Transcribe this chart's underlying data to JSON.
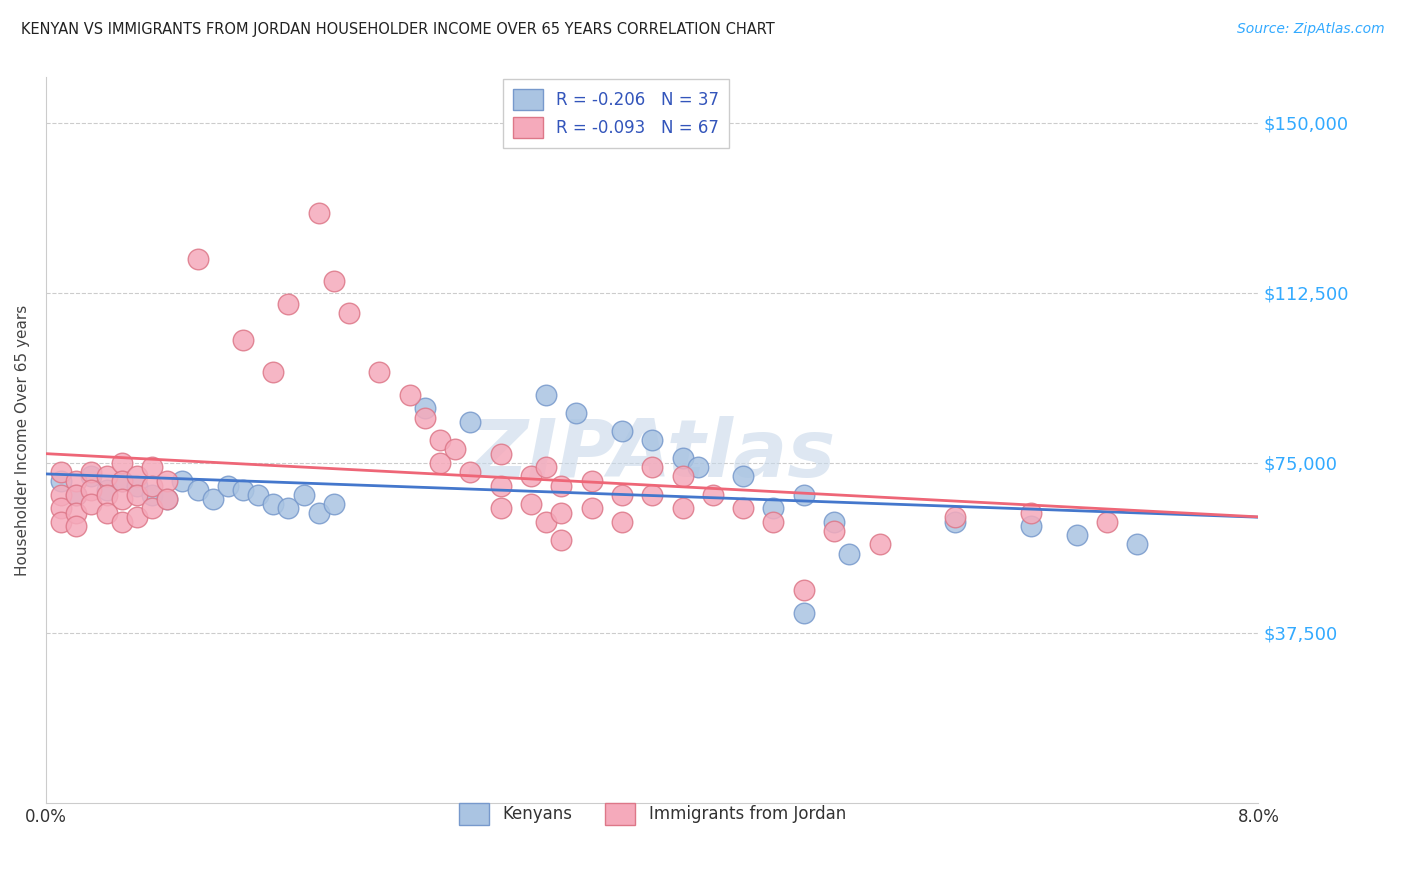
{
  "title": "KENYAN VS IMMIGRANTS FROM JORDAN HOUSEHOLDER INCOME OVER 65 YEARS CORRELATION CHART",
  "source": "Source: ZipAtlas.com",
  "ylabel": "Householder Income Over 65 years",
  "xmin": 0.0,
  "xmax": 0.08,
  "ymin": 0,
  "ymax": 160000,
  "yticks": [
    0,
    37500,
    75000,
    112500,
    150000
  ],
  "ytick_labels": [
    "",
    "$37,500",
    "$75,000",
    "$112,500",
    "$150,000"
  ],
  "xtick_left": "0.0%",
  "xtick_right": "8.0%",
  "grid_color": "#cccccc",
  "background_color": "#ffffff",
  "watermark": "ZIPAtlas",
  "watermark_color": "#c8d8ea",
  "legend_color": "#3355bb",
  "series": [
    {
      "label": "Kenyans",
      "R": -0.206,
      "N": 37,
      "color_fill": "#aac4e2",
      "color_edge": "#7799cc",
      "line_color": "#4477cc",
      "points": [
        [
          0.001,
          71000
        ],
        [
          0.002,
          68000
        ],
        [
          0.003,
          72000
        ],
        [
          0.004,
          69000
        ],
        [
          0.005,
          71000
        ],
        [
          0.006,
          70000
        ],
        [
          0.007,
          68000
        ],
        [
          0.008,
          67000
        ],
        [
          0.009,
          71000
        ],
        [
          0.01,
          69000
        ],
        [
          0.011,
          67000
        ],
        [
          0.012,
          70000
        ],
        [
          0.013,
          69000
        ],
        [
          0.014,
          68000
        ],
        [
          0.015,
          66000
        ],
        [
          0.016,
          65000
        ],
        [
          0.017,
          68000
        ],
        [
          0.018,
          64000
        ],
        [
          0.019,
          66000
        ],
        [
          0.025,
          87000
        ],
        [
          0.028,
          84000
        ],
        [
          0.033,
          90000
        ],
        [
          0.035,
          86000
        ],
        [
          0.038,
          82000
        ],
        [
          0.04,
          80000
        ],
        [
          0.042,
          76000
        ],
        [
          0.043,
          74000
        ],
        [
          0.046,
          72000
        ],
        [
          0.048,
          65000
        ],
        [
          0.05,
          68000
        ],
        [
          0.052,
          62000
        ],
        [
          0.05,
          42000
        ],
        [
          0.053,
          55000
        ],
        [
          0.06,
          62000
        ],
        [
          0.065,
          61000
        ],
        [
          0.068,
          59000
        ],
        [
          0.072,
          57000
        ]
      ]
    },
    {
      "label": "Immigrants from Jordan",
      "R": -0.093,
      "N": 67,
      "color_fill": "#f5aabb",
      "color_edge": "#dd7788",
      "line_color": "#ee6677",
      "points": [
        [
          0.001,
          73000
        ],
        [
          0.001,
          68000
        ],
        [
          0.001,
          65000
        ],
        [
          0.001,
          62000
        ],
        [
          0.002,
          71000
        ],
        [
          0.002,
          68000
        ],
        [
          0.002,
          64000
        ],
        [
          0.002,
          61000
        ],
        [
          0.003,
          73000
        ],
        [
          0.003,
          69000
        ],
        [
          0.003,
          66000
        ],
        [
          0.004,
          72000
        ],
        [
          0.004,
          68000
        ],
        [
          0.004,
          64000
        ],
        [
          0.005,
          75000
        ],
        [
          0.005,
          71000
        ],
        [
          0.005,
          67000
        ],
        [
          0.005,
          62000
        ],
        [
          0.006,
          72000
        ],
        [
          0.006,
          68000
        ],
        [
          0.006,
          63000
        ],
        [
          0.007,
          74000
        ],
        [
          0.007,
          70000
        ],
        [
          0.007,
          65000
        ],
        [
          0.008,
          71000
        ],
        [
          0.008,
          67000
        ],
        [
          0.01,
          120000
        ],
        [
          0.013,
          102000
        ],
        [
          0.015,
          95000
        ],
        [
          0.016,
          110000
        ],
        [
          0.018,
          130000
        ],
        [
          0.019,
          115000
        ],
        [
          0.02,
          108000
        ],
        [
          0.022,
          95000
        ],
        [
          0.024,
          90000
        ],
        [
          0.025,
          85000
        ],
        [
          0.026,
          80000
        ],
        [
          0.026,
          75000
        ],
        [
          0.027,
          78000
        ],
        [
          0.028,
          73000
        ],
        [
          0.03,
          77000
        ],
        [
          0.03,
          70000
        ],
        [
          0.03,
          65000
        ],
        [
          0.032,
          72000
        ],
        [
          0.032,
          66000
        ],
        [
          0.033,
          74000
        ],
        [
          0.033,
          62000
        ],
        [
          0.034,
          70000
        ],
        [
          0.034,
          64000
        ],
        [
          0.034,
          58000
        ],
        [
          0.036,
          71000
        ],
        [
          0.036,
          65000
        ],
        [
          0.038,
          68000
        ],
        [
          0.038,
          62000
        ],
        [
          0.04,
          74000
        ],
        [
          0.04,
          68000
        ],
        [
          0.042,
          72000
        ],
        [
          0.042,
          65000
        ],
        [
          0.044,
          68000
        ],
        [
          0.046,
          65000
        ],
        [
          0.048,
          62000
        ],
        [
          0.05,
          47000
        ],
        [
          0.052,
          60000
        ],
        [
          0.055,
          57000
        ],
        [
          0.06,
          63000
        ],
        [
          0.065,
          64000
        ],
        [
          0.07,
          62000
        ]
      ]
    }
  ]
}
